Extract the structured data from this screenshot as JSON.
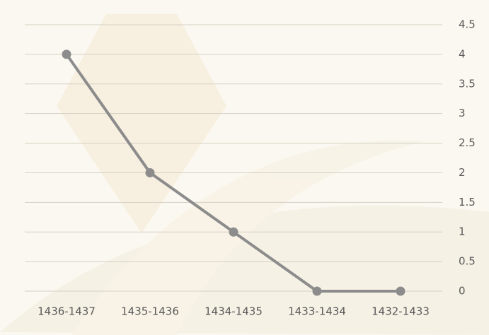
{
  "chart_data": {
    "type": "line",
    "categories": [
      "1436-1437",
      "1435-1436",
      "1434-1435",
      "1433-1434",
      "1432-1433"
    ],
    "series": [
      {
        "color": "#8c8c8c",
        "values": [
          4,
          2,
          1,
          0,
          0
        ]
      }
    ],
    "ylim": [
      0,
      4.5
    ],
    "yticks": [
      0,
      0.5,
      1,
      1.5,
      2,
      2.5,
      3,
      3.5,
      4,
      4.5
    ],
    "grid": true
  }
}
